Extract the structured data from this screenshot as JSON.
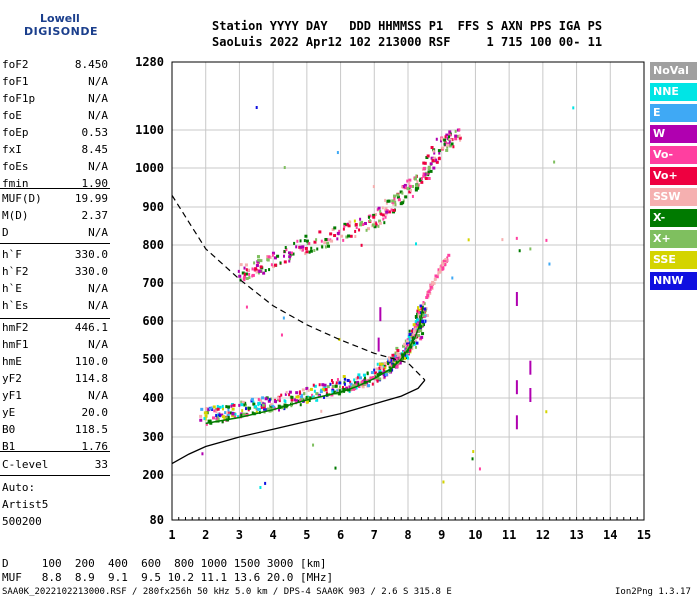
{
  "logo": {
    "line1": "Lowell",
    "line2": "DIGISONDE"
  },
  "header": {
    "line1": "Station YYYY DAY   DDD HHMMSS P1  FFS S AXN PPS IGA PS",
    "line2": "SaoLuis 2022 Apr12 102 213000 RSF     1 715 100 00- 11"
  },
  "params": {
    "group1": [
      {
        "k": "foF2",
        "v": "8.450"
      },
      {
        "k": "foF1",
        "v": "N/A"
      },
      {
        "k": "foF1p",
        "v": "N/A"
      },
      {
        "k": "foE",
        "v": "N/A"
      },
      {
        "k": "foEp",
        "v": "0.53"
      },
      {
        "k": "fxI",
        "v": "8.45"
      },
      {
        "k": "foEs",
        "v": "N/A"
      },
      {
        "k": "fmin",
        "v": "1.90"
      }
    ],
    "group2": [
      {
        "k": "MUF(D)",
        "v": "19.99"
      },
      {
        "k": "M(D)",
        "v": "2.37"
      },
      {
        "k": "D",
        "v": "N/A"
      }
    ],
    "group3": [
      {
        "k": "h`F",
        "v": "330.0"
      },
      {
        "k": "h`F2",
        "v": "330.0"
      },
      {
        "k": "h`E",
        "v": "N/A"
      },
      {
        "k": "h`Es",
        "v": "N/A"
      }
    ],
    "group4": [
      {
        "k": "hmF2",
        "v": "446.1"
      },
      {
        "k": "hmF1",
        "v": "N/A"
      },
      {
        "k": "hmE",
        "v": "110.0"
      },
      {
        "k": "yF2",
        "v": "114.8"
      },
      {
        "k": "yF1",
        "v": "N/A"
      },
      {
        "k": "yE",
        "v": "20.0"
      },
      {
        "k": "B0",
        "v": "118.5"
      },
      {
        "k": "B1",
        "v": "1.76"
      }
    ],
    "clevel": {
      "k": "C-level",
      "v": "33"
    },
    "auto": [
      "Auto:",
      "Artist5",
      "500200"
    ]
  },
  "legend": [
    {
      "label": "NoVal",
      "color": "#a0a0a0"
    },
    {
      "label": "NNE",
      "color": "#00e5e5"
    },
    {
      "label": "E",
      "color": "#3fa9f5"
    },
    {
      "label": "W",
      "color": "#b000b0"
    },
    {
      "label": "Vo-",
      "color": "#ff3fa0"
    },
    {
      "label": "Vo+",
      "color": "#ee0040"
    },
    {
      "label": "SSW",
      "color": "#f5b0b0"
    },
    {
      "label": "X-",
      "color": "#007a00"
    },
    {
      "label": "X+",
      "color": "#7fbf5f"
    },
    {
      "label": "SSE",
      "color": "#d4d400"
    },
    {
      "label": "NNW",
      "color": "#1010e0"
    }
  ],
  "footer": {
    "d_row": "D     100  200  400  600  800 1000 1500 3000 [km]",
    "muf_row": "MUF   8.8  8.9  9.1  9.5 10.2 11.1 13.6 20.0 [MHz]",
    "info": "SAA0K_2022102213000.RSF / 280fx256h 50 kHz 5.0 km / DPS-4 SAA0K 903 / 2.6 S 315.8 E",
    "version": "Ion2Png 1.3.17"
  },
  "chart_data": {
    "type": "scatter",
    "x_ticks": [
      "1",
      "2",
      "3",
      "4",
      "5",
      "6",
      "7",
      "8",
      "9",
      "10",
      "11",
      "12",
      "13",
      "14",
      "15"
    ],
    "y_ticks": [
      "80",
      "200",
      "300",
      "400",
      "500",
      "600",
      "700",
      "800",
      "900",
      "1000",
      "1100",
      "1280"
    ],
    "xlim": [
      1,
      15
    ],
    "ylim": [
      80,
      1280
    ],
    "colors": {
      "trace": "#ff3fa0",
      "o_trace": "#007a00",
      "profile": "#000000"
    },
    "o_trace": [
      [
        2.0,
        335
      ],
      [
        3.0,
        350
      ],
      [
        4.0,
        370
      ],
      [
        5.0,
        395
      ],
      [
        6.0,
        415
      ],
      [
        6.5,
        430
      ],
      [
        7.0,
        450
      ],
      [
        7.5,
        475
      ],
      [
        7.8,
        500
      ],
      [
        8.0,
        525
      ],
      [
        8.2,
        555
      ],
      [
        8.35,
        590
      ],
      [
        8.45,
        640
      ]
    ],
    "multi_trace": [
      [
        3.0,
        720
      ],
      [
        4.0,
        760
      ],
      [
        5.0,
        800
      ],
      [
        6.0,
        830
      ],
      [
        7.0,
        860
      ],
      [
        7.5,
        900
      ],
      [
        8.0,
        940
      ],
      [
        8.5,
        990
      ],
      [
        9.0,
        1060
      ],
      [
        9.5,
        1090
      ]
    ],
    "extra_trace": [
      [
        8.45,
        640
      ],
      [
        8.7,
        690
      ],
      [
        9.0,
        740
      ],
      [
        9.2,
        770
      ]
    ],
    "profile_solid": [
      [
        1,
        230
      ],
      [
        1.5,
        255
      ],
      [
        2,
        275
      ],
      [
        3,
        300
      ],
      [
        4,
        320
      ],
      [
        5,
        340
      ],
      [
        6,
        360
      ],
      [
        7,
        385
      ],
      [
        7.8,
        405
      ],
      [
        8.3,
        425
      ],
      [
        8.5,
        446
      ]
    ],
    "profile_dashed": [
      [
        1,
        930
      ],
      [
        1.5,
        860
      ],
      [
        2,
        790
      ],
      [
        3,
        710
      ],
      [
        4,
        640
      ],
      [
        5,
        590
      ],
      [
        6,
        550
      ],
      [
        7,
        515
      ],
      [
        8,
        490
      ],
      [
        8.5,
        446
      ]
    ]
  }
}
